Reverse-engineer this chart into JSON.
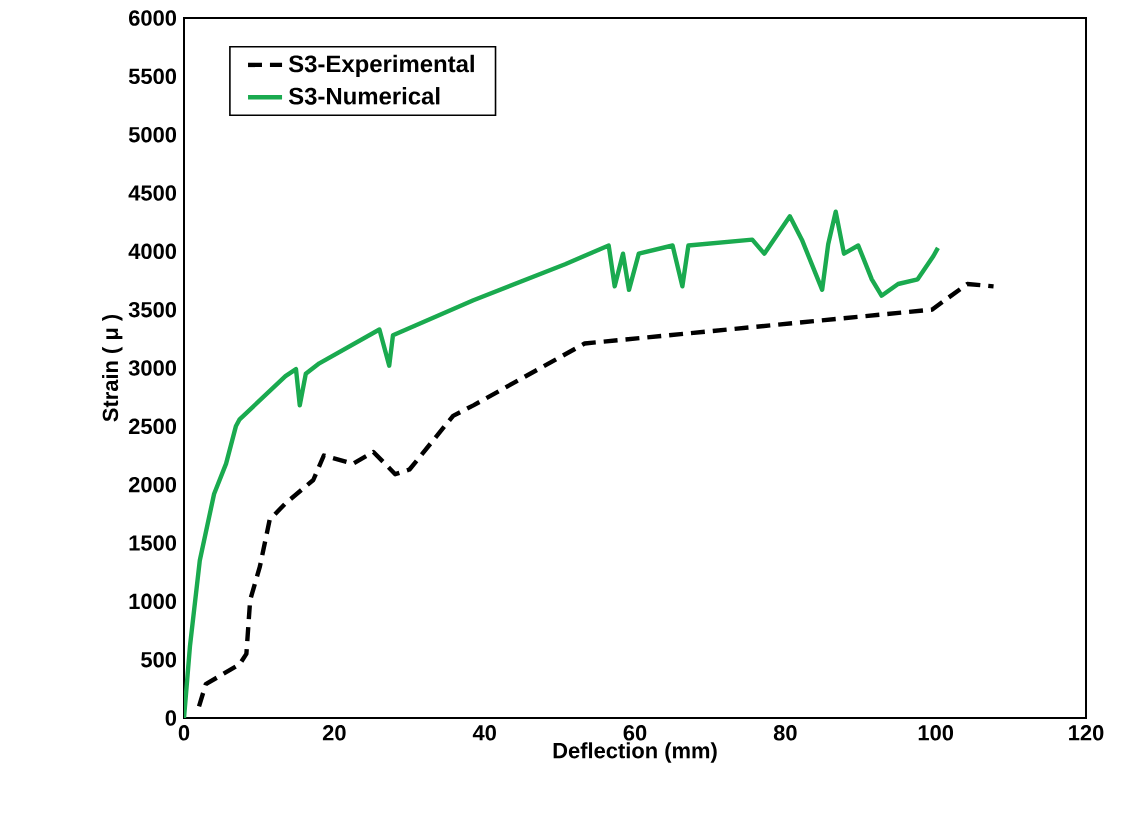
{
  "chart_data": {
    "type": "line",
    "xlabel": "Deflection (mm)",
    "ylabel": "Strain ( μ )",
    "xlim": [
      0,
      120
    ],
    "xticks": [
      0,
      20,
      40,
      60,
      80,
      100,
      120
    ],
    "ylim": [
      0,
      6000
    ],
    "yticks": [
      0,
      500,
      1000,
      1500,
      2000,
      2500,
      3000,
      3500,
      4000,
      4500,
      5000,
      5500,
      6000
    ],
    "grid": false,
    "legend": "top left",
    "marker": "none",
    "series": [
      {
        "name": "S3-Experimental",
        "color": "#000000",
        "line_style": "dashed",
        "x": [
          2,
          2.9,
          7.4,
          8.3,
          8.8,
          10.1,
          11.4,
          13.5,
          17.2,
          18.6,
          22.5,
          25.2,
          28.1,
          30,
          35.8,
          38.5,
          43.8,
          53.3,
          99.5,
          104.2,
          107.7
        ],
        "values": [
          100,
          290,
          460,
          550,
          1010,
          1300,
          1700,
          1840,
          2040,
          2250,
          2180,
          2280,
          2090,
          2130,
          2590,
          2680,
          2870,
          3210,
          3500,
          3720,
          3700
        ]
      },
      {
        "name": "S3-Numerical",
        "color": "#1aaa4f",
        "line_style": "solid",
        "x": [
          0,
          0.8,
          2.1,
          4,
          5.6,
          6.9,
          7.4,
          13.5,
          14.9,
          15.4,
          16.2,
          18,
          26,
          27.3,
          27.8,
          38.5,
          50.7,
          56.5,
          57.3,
          58.4,
          59.2,
          60.5,
          65,
          66.3,
          67.1,
          75.6,
          77.2,
          80.6,
          82.2,
          84.9,
          85.7,
          86.7,
          87.8,
          89.7,
          91.5,
          92.8,
          95,
          97.6,
          99.7,
          100.3
        ],
        "values": [
          0,
          620,
          1350,
          1920,
          2180,
          2500,
          2560,
          2930,
          2990,
          2680,
          2950,
          3040,
          3330,
          3020,
          3280,
          3580,
          3890,
          4050,
          3700,
          3980,
          3670,
          3980,
          4050,
          3700,
          4050,
          4100,
          3980,
          4300,
          4100,
          3670,
          4060,
          4340,
          3980,
          4050,
          3760,
          3620,
          3720,
          3760,
          3960,
          4030
        ]
      }
    ]
  }
}
